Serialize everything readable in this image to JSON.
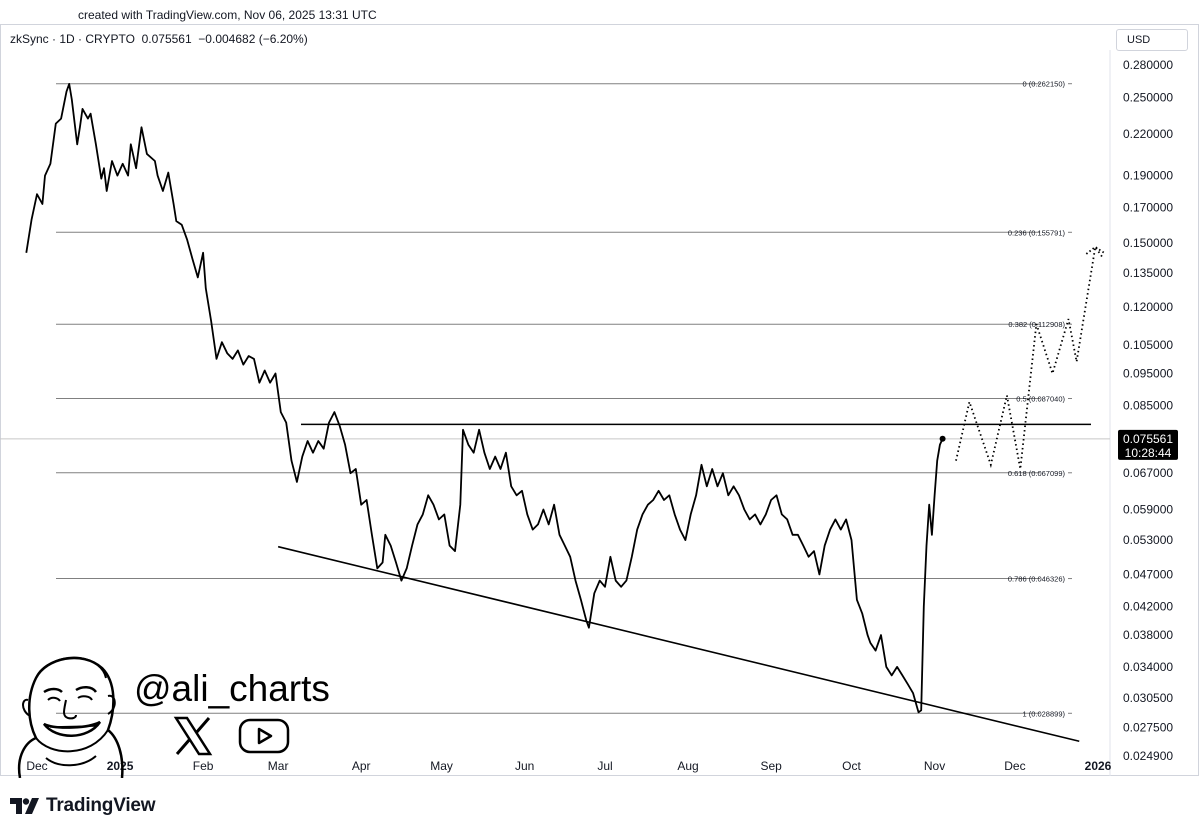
{
  "header": {
    "credit": "created with TradingView.com, Nov 06, 2025 13:31 UTC",
    "legend": "zkSync · 1D · CRYPTO  0.075561  −0.004682 (−6.20%)",
    "currency": "USD"
  },
  "chart_data": {
    "type": "line",
    "symbol": "zkSync",
    "interval": "1D",
    "exchange": "CRYPTO",
    "last_price": 0.075561,
    "change": -0.004682,
    "change_percent": -6.2,
    "last_price_label": "0.075561",
    "countdown_label": "10:28:44",
    "y_scale": "log",
    "ylim": [
      0.0232,
      0.295
    ],
    "y_ticks": [
      "0.280000",
      "0.250000",
      "0.220000",
      "0.190000",
      "0.170000",
      "0.150000",
      "0.135000",
      "0.120000",
      "0.105000",
      "0.095000",
      "0.085000",
      "0.075561",
      "0.067000",
      "0.059000",
      "0.053000",
      "0.047000",
      "0.042000",
      "0.038000",
      "0.034000",
      "0.030500",
      "0.027500",
      "0.024900"
    ],
    "x_ticks": [
      "Dec",
      "2025",
      "Feb",
      "Mar",
      "Apr",
      "May",
      "Jun",
      "Jul",
      "Aug",
      "Sep",
      "Oct",
      "Nov",
      "Dec",
      "2026"
    ],
    "fib_levels": [
      {
        "ratio": "0",
        "price": 0.26215,
        "label": "0 (0.262150)"
      },
      {
        "ratio": "0.236",
        "price": 0.155791,
        "label": "0.236 (0.155791)"
      },
      {
        "ratio": "0.382",
        "price": 0.112908,
        "label": "0.382 (0.112908)"
      },
      {
        "ratio": "0.5",
        "price": 0.08704,
        "label": "0.5 (0.087040)"
      },
      {
        "ratio": "0.618",
        "price": 0.067099,
        "label": "0.618 (0.067099)"
      },
      {
        "ratio": "0.786",
        "price": 0.046326,
        "label": "0.786 (0.046326)"
      },
      {
        "ratio": "1",
        "price": 0.028899,
        "label": "1 (0.028899)"
      }
    ],
    "resistance_price": 0.0795,
    "support_line": [
      [
        "2025-03-01",
        0.0518
      ],
      [
        "2025-12-25",
        0.0262
      ]
    ],
    "series": [
      {
        "points": [
          [
            "2024-11-27",
            0.145
          ],
          [
            "2024-11-29",
            0.163
          ],
          [
            "2024-12-01",
            0.178
          ],
          [
            "2024-12-03",
            0.172
          ],
          [
            "2024-12-04",
            0.19
          ],
          [
            "2024-12-06",
            0.198
          ],
          [
            "2024-12-08",
            0.228
          ],
          [
            "2024-12-10",
            0.232
          ],
          [
            "2024-12-12",
            0.255
          ],
          [
            "2024-12-13",
            0.262
          ],
          [
            "2024-12-14",
            0.248
          ],
          [
            "2024-12-16",
            0.212
          ],
          [
            "2024-12-17",
            0.225
          ],
          [
            "2024-12-18",
            0.24
          ],
          [
            "2024-12-20",
            0.232
          ],
          [
            "2024-12-21",
            0.236
          ],
          [
            "2024-12-23",
            0.212
          ],
          [
            "2024-12-25",
            0.188
          ],
          [
            "2024-12-26",
            0.195
          ],
          [
            "2024-12-27",
            0.18
          ],
          [
            "2024-12-29",
            0.2
          ],
          [
            "2024-12-31",
            0.19
          ],
          [
            "2025-01-02",
            0.198
          ],
          [
            "2025-01-04",
            0.19
          ],
          [
            "2025-01-05",
            0.212
          ],
          [
            "2025-01-07",
            0.195
          ],
          [
            "2025-01-09",
            0.225
          ],
          [
            "2025-01-11",
            0.205
          ],
          [
            "2025-01-14",
            0.2
          ],
          [
            "2025-01-15",
            0.19
          ],
          [
            "2025-01-17",
            0.18
          ],
          [
            "2025-01-19",
            0.192
          ],
          [
            "2025-01-21",
            0.172
          ],
          [
            "2025-01-22",
            0.162
          ],
          [
            "2025-01-24",
            0.16
          ],
          [
            "2025-01-26",
            0.152
          ],
          [
            "2025-01-28",
            0.142
          ],
          [
            "2025-01-30",
            0.133
          ],
          [
            "2025-02-01",
            0.145
          ],
          [
            "2025-02-02",
            0.128
          ],
          [
            "2025-02-04",
            0.114
          ],
          [
            "2025-02-06",
            0.1
          ],
          [
            "2025-02-08",
            0.106
          ],
          [
            "2025-02-10",
            0.102
          ],
          [
            "2025-02-12",
            0.1
          ],
          [
            "2025-02-14",
            0.103
          ],
          [
            "2025-02-16",
            0.098
          ],
          [
            "2025-02-18",
            0.101
          ],
          [
            "2025-02-20",
            0.1
          ],
          [
            "2025-02-22",
            0.092
          ],
          [
            "2025-02-24",
            0.096
          ],
          [
            "2025-02-26",
            0.092
          ],
          [
            "2025-02-28",
            0.095
          ],
          [
            "2025-03-02",
            0.083
          ],
          [
            "2025-03-04",
            0.08
          ],
          [
            "2025-03-06",
            0.07
          ],
          [
            "2025-03-08",
            0.065
          ],
          [
            "2025-03-10",
            0.071
          ],
          [
            "2025-03-12",
            0.075
          ],
          [
            "2025-03-14",
            0.072
          ],
          [
            "2025-03-16",
            0.075
          ],
          [
            "2025-03-18",
            0.073
          ],
          [
            "2025-03-20",
            0.08
          ],
          [
            "2025-03-22",
            0.083
          ],
          [
            "2025-03-24",
            0.079
          ],
          [
            "2025-03-26",
            0.074
          ],
          [
            "2025-03-28",
            0.067
          ],
          [
            "2025-03-30",
            0.068
          ],
          [
            "2025-04-01",
            0.06
          ],
          [
            "2025-04-03",
            0.061
          ],
          [
            "2025-04-05",
            0.054
          ],
          [
            "2025-04-07",
            0.048
          ],
          [
            "2025-04-09",
            0.049
          ],
          [
            "2025-04-10",
            0.054
          ],
          [
            "2025-04-12",
            0.052
          ],
          [
            "2025-04-14",
            0.049
          ],
          [
            "2025-04-16",
            0.046
          ],
          [
            "2025-04-18",
            0.048
          ],
          [
            "2025-04-20",
            0.052
          ],
          [
            "2025-04-22",
            0.056
          ],
          [
            "2025-04-24",
            0.058
          ],
          [
            "2025-04-26",
            0.062
          ],
          [
            "2025-04-28",
            0.06
          ],
          [
            "2025-04-30",
            0.057
          ],
          [
            "2025-05-02",
            0.058
          ],
          [
            "2025-05-04",
            0.052
          ],
          [
            "2025-05-06",
            0.051
          ],
          [
            "2025-05-08",
            0.06
          ],
          [
            "2025-05-09",
            0.078
          ],
          [
            "2025-05-11",
            0.074
          ],
          [
            "2025-05-13",
            0.072
          ],
          [
            "2025-05-15",
            0.078
          ],
          [
            "2025-05-17",
            0.072
          ],
          [
            "2025-05-19",
            0.068
          ],
          [
            "2025-05-21",
            0.071
          ],
          [
            "2025-05-23",
            0.068
          ],
          [
            "2025-05-25",
            0.072
          ],
          [
            "2025-05-27",
            0.064
          ],
          [
            "2025-05-29",
            0.062
          ],
          [
            "2025-05-31",
            0.063
          ],
          [
            "2025-06-02",
            0.058
          ],
          [
            "2025-06-04",
            0.055
          ],
          [
            "2025-06-06",
            0.056
          ],
          [
            "2025-06-08",
            0.059
          ],
          [
            "2025-06-10",
            0.056
          ],
          [
            "2025-06-12",
            0.06
          ],
          [
            "2025-06-14",
            0.054
          ],
          [
            "2025-06-16",
            0.052
          ],
          [
            "2025-06-18",
            0.05
          ],
          [
            "2025-06-20",
            0.046
          ],
          [
            "2025-06-22",
            0.043
          ],
          [
            "2025-06-24",
            0.04
          ],
          [
            "2025-06-25",
            0.039
          ],
          [
            "2025-06-27",
            0.044
          ],
          [
            "2025-06-29",
            0.046
          ],
          [
            "2025-07-01",
            0.045
          ],
          [
            "2025-07-03",
            0.05
          ],
          [
            "2025-07-05",
            0.046
          ],
          [
            "2025-07-07",
            0.045
          ],
          [
            "2025-07-09",
            0.046
          ],
          [
            "2025-07-11",
            0.05
          ],
          [
            "2025-07-13",
            0.055
          ],
          [
            "2025-07-15",
            0.058
          ],
          [
            "2025-07-17",
            0.06
          ],
          [
            "2025-07-19",
            0.061
          ],
          [
            "2025-07-21",
            0.063
          ],
          [
            "2025-07-23",
            0.061
          ],
          [
            "2025-07-25",
            0.062
          ],
          [
            "2025-07-27",
            0.058
          ],
          [
            "2025-07-29",
            0.055
          ],
          [
            "2025-07-31",
            0.053
          ],
          [
            "2025-08-02",
            0.058
          ],
          [
            "2025-08-04",
            0.062
          ],
          [
            "2025-08-06",
            0.069
          ],
          [
            "2025-08-08",
            0.064
          ],
          [
            "2025-08-10",
            0.068
          ],
          [
            "2025-08-12",
            0.064
          ],
          [
            "2025-08-14",
            0.067
          ],
          [
            "2025-08-16",
            0.062
          ],
          [
            "2025-08-18",
            0.064
          ],
          [
            "2025-08-20",
            0.062
          ],
          [
            "2025-08-22",
            0.059
          ],
          [
            "2025-08-24",
            0.057
          ],
          [
            "2025-08-26",
            0.058
          ],
          [
            "2025-08-28",
            0.056
          ],
          [
            "2025-08-30",
            0.058
          ],
          [
            "2025-09-01",
            0.061
          ],
          [
            "2025-09-03",
            0.062
          ],
          [
            "2025-09-05",
            0.058
          ],
          [
            "2025-09-07",
            0.057
          ],
          [
            "2025-09-09",
            0.054
          ],
          [
            "2025-09-11",
            0.054
          ],
          [
            "2025-09-13",
            0.052
          ],
          [
            "2025-09-15",
            0.05
          ],
          [
            "2025-09-17",
            0.051
          ],
          [
            "2025-09-19",
            0.047
          ],
          [
            "2025-09-21",
            0.052
          ],
          [
            "2025-09-23",
            0.055
          ],
          [
            "2025-09-25",
            0.057
          ],
          [
            "2025-09-27",
            0.055
          ],
          [
            "2025-09-29",
            0.057
          ],
          [
            "2025-10-01",
            0.053
          ],
          [
            "2025-10-03",
            0.043
          ],
          [
            "2025-10-05",
            0.041
          ],
          [
            "2025-10-07",
            0.038
          ],
          [
            "2025-10-08",
            0.037
          ],
          [
            "2025-10-10",
            0.036
          ],
          [
            "2025-10-12",
            0.038
          ],
          [
            "2025-10-14",
            0.034
          ],
          [
            "2025-10-16",
            0.033
          ],
          [
            "2025-10-18",
            0.034
          ],
          [
            "2025-10-20",
            0.033
          ],
          [
            "2025-10-22",
            0.032
          ],
          [
            "2025-10-24",
            0.031
          ],
          [
            "2025-10-26",
            0.029
          ],
          [
            "2025-10-27",
            0.0292
          ],
          [
            "2025-10-28",
            0.042
          ],
          [
            "2025-10-29",
            0.052
          ],
          [
            "2025-10-30",
            0.06
          ],
          [
            "2025-10-31",
            0.054
          ],
          [
            "2025-11-01",
            0.062
          ],
          [
            "2025-11-02",
            0.07
          ],
          [
            "2025-11-03",
            0.074
          ],
          [
            "2025-11-04",
            0.0756
          ]
        ]
      }
    ],
    "projection": [
      [
        "2025-11-09",
        0.07
      ],
      [
        "2025-11-14",
        0.086
      ],
      [
        "2025-11-22",
        0.069
      ],
      [
        "2025-11-28",
        0.088
      ],
      [
        "2025-12-03",
        0.068
      ],
      [
        "2025-12-09",
        0.113
      ],
      [
        "2025-12-15",
        0.095
      ],
      [
        "2025-12-21",
        0.115
      ],
      [
        "2025-12-24",
        0.099
      ],
      [
        "2025-12-31",
        0.148
      ],
      [
        "2026-01-03",
        0.142
      ]
    ]
  },
  "watermark": {
    "handle": "@ali_charts",
    "icons": [
      "x-logo-icon",
      "youtube-icon"
    ]
  },
  "footer": {
    "logo_text": "TradingView",
    "logo_icon": "tradingview-logo-icon"
  }
}
